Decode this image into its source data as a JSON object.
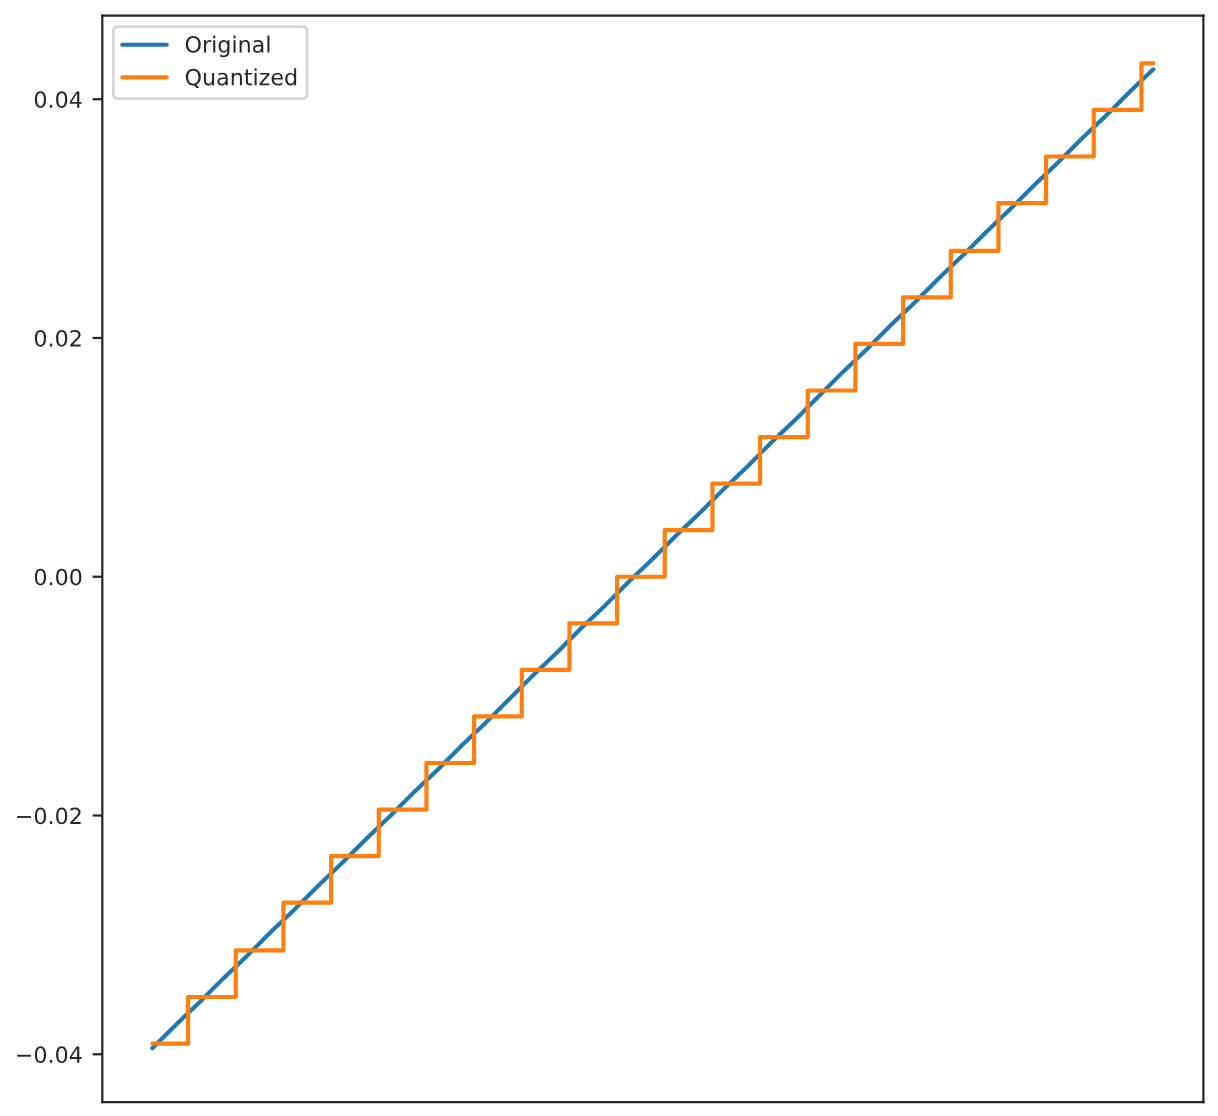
{
  "chart_data": {
    "type": "line",
    "categories": [
      null,
      null,
      null,
      null,
      null,
      null,
      null,
      null,
      null,
      null,
      null,
      null,
      null,
      null,
      null,
      null,
      null,
      null,
      null,
      null,
      null,
      null,
      null,
      null,
      null,
      null,
      null,
      null,
      null,
      null,
      null,
      null,
      null,
      null,
      null,
      null,
      null,
      null,
      null,
      null,
      null,
      null,
      null
    ],
    "series": [
      {
        "name": "Original",
        "color": "#1f77b4",
        "values": [
          -0.0395,
          -0.0375,
          -0.0356,
          -0.0336,
          -0.0317,
          -0.0297,
          -0.0278,
          -0.0258,
          -0.0239,
          -0.0219,
          -0.02,
          -0.018,
          -0.0161,
          -0.0141,
          -0.0122,
          -0.0102,
          -0.0082,
          -0.0063,
          -0.0043,
          -0.0024,
          -0.0004,
          0.0015,
          0.0035,
          0.0054,
          0.0074,
          0.0093,
          0.0113,
          0.0132,
          0.0152,
          0.0172,
          0.0191,
          0.0211,
          0.023,
          0.025,
          0.0269,
          0.0289,
          0.0308,
          0.0328,
          0.0347,
          0.0367,
          0.0386,
          0.0406,
          0.0425
        ]
      },
      {
        "name": "Quantized",
        "type": "step",
        "color": "#ff7f0e",
        "values": [
          -0.0391,
          -0.0391,
          -0.0352,
          -0.0352,
          -0.0313,
          -0.0313,
          -0.0273,
          -0.0273,
          -0.0234,
          -0.0234,
          -0.0195,
          -0.0195,
          -0.0156,
          -0.0156,
          -0.0117,
          -0.0117,
          -0.0078,
          -0.0078,
          -0.0039,
          -0.0039,
          0.0,
          0.0,
          0.0039,
          0.0039,
          0.0078,
          0.0078,
          0.0117,
          0.0117,
          0.0156,
          0.0156,
          0.0195,
          0.0195,
          0.0234,
          0.0234,
          0.0273,
          0.0273,
          0.0313,
          0.0313,
          0.0352,
          0.0352,
          0.0391,
          0.0391,
          0.043
        ]
      }
    ],
    "ylim": [
      -0.044,
      0.047
    ],
    "yticks": [
      {
        "value": -0.04,
        "label": "−0.04"
      },
      {
        "value": -0.02,
        "label": "−0.02"
      },
      {
        "value": 0.0,
        "label": "0.00"
      },
      {
        "value": 0.02,
        "label": "0.02"
      },
      {
        "value": 0.04,
        "label": "0.04"
      }
    ],
    "tick_labels": "y",
    "legend": "top left",
    "grid": false
  }
}
